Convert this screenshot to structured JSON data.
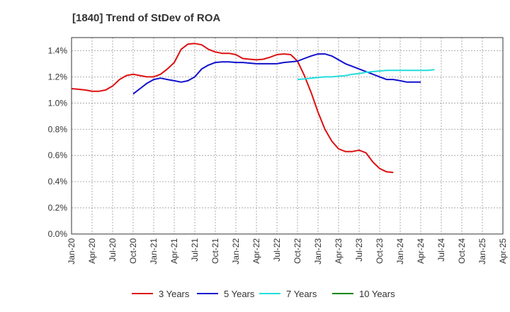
{
  "chart_data": {
    "type": "line",
    "title": "[1840]  Trend of StDev of ROA",
    "xlabel": "",
    "ylabel": "",
    "ylim": [
      0,
      1.5
    ],
    "y_ticks": [
      "0.0%",
      "0.2%",
      "0.4%",
      "0.6%",
      "0.8%",
      "1.0%",
      "1.2%",
      "1.4%"
    ],
    "x_ticks": [
      "Jan-20",
      "Apr-20",
      "Jul-20",
      "Oct-20",
      "Jan-21",
      "Apr-21",
      "Jul-21",
      "Oct-21",
      "Jan-22",
      "Apr-22",
      "Jul-22",
      "Oct-22",
      "Jan-23",
      "Apr-23",
      "Jul-23",
      "Oct-23",
      "Jan-24",
      "Apr-24",
      "Jul-24",
      "Oct-24",
      "Jan-25",
      "Apr-25"
    ],
    "grid": true,
    "legend_position": "bottom",
    "x_start": "Jan-20",
    "series": [
      {
        "name": "3 Years",
        "color": "#dd1111",
        "start": "Jan-20",
        "values": [
          1.11,
          1.105,
          1.1,
          1.09,
          1.09,
          1.1,
          1.13,
          1.18,
          1.21,
          1.22,
          1.21,
          1.2,
          1.2,
          1.22,
          1.26,
          1.31,
          1.41,
          1.45,
          1.455,
          1.445,
          1.41,
          1.39,
          1.38,
          1.38,
          1.37,
          1.34,
          1.335,
          1.33,
          1.335,
          1.35,
          1.37,
          1.375,
          1.37,
          1.32,
          1.21,
          1.08,
          0.93,
          0.8,
          0.71,
          0.65,
          0.63,
          0.63,
          0.64,
          0.62,
          0.55,
          0.5,
          0.475,
          0.47
        ]
      },
      {
        "name": "5 Years",
        "color": "#1111cc",
        "start": "Oct-20",
        "values": [
          1.07,
          1.11,
          1.15,
          1.18,
          1.19,
          1.18,
          1.17,
          1.16,
          1.17,
          1.2,
          1.26,
          1.29,
          1.31,
          1.315,
          1.315,
          1.31,
          1.31,
          1.305,
          1.3,
          1.3,
          1.3,
          1.3,
          1.31,
          1.315,
          1.32,
          1.34,
          1.36,
          1.375,
          1.375,
          1.36,
          1.33,
          1.3,
          1.28,
          1.26,
          1.24,
          1.22,
          1.2,
          1.18,
          1.18,
          1.17,
          1.16,
          1.16,
          1.16
        ]
      },
      {
        "name": "7 Years",
        "color": "#22dddd",
        "start": "Oct-22",
        "values": [
          1.18,
          1.185,
          1.19,
          1.195,
          1.2,
          1.2,
          1.205,
          1.21,
          1.22,
          1.225,
          1.235,
          1.24,
          1.245,
          1.25,
          1.25,
          1.25,
          1.25,
          1.25,
          1.25,
          1.25,
          1.255
        ]
      },
      {
        "name": "10 Years",
        "color": "#118811",
        "start": "Jan-25",
        "values": []
      }
    ]
  }
}
